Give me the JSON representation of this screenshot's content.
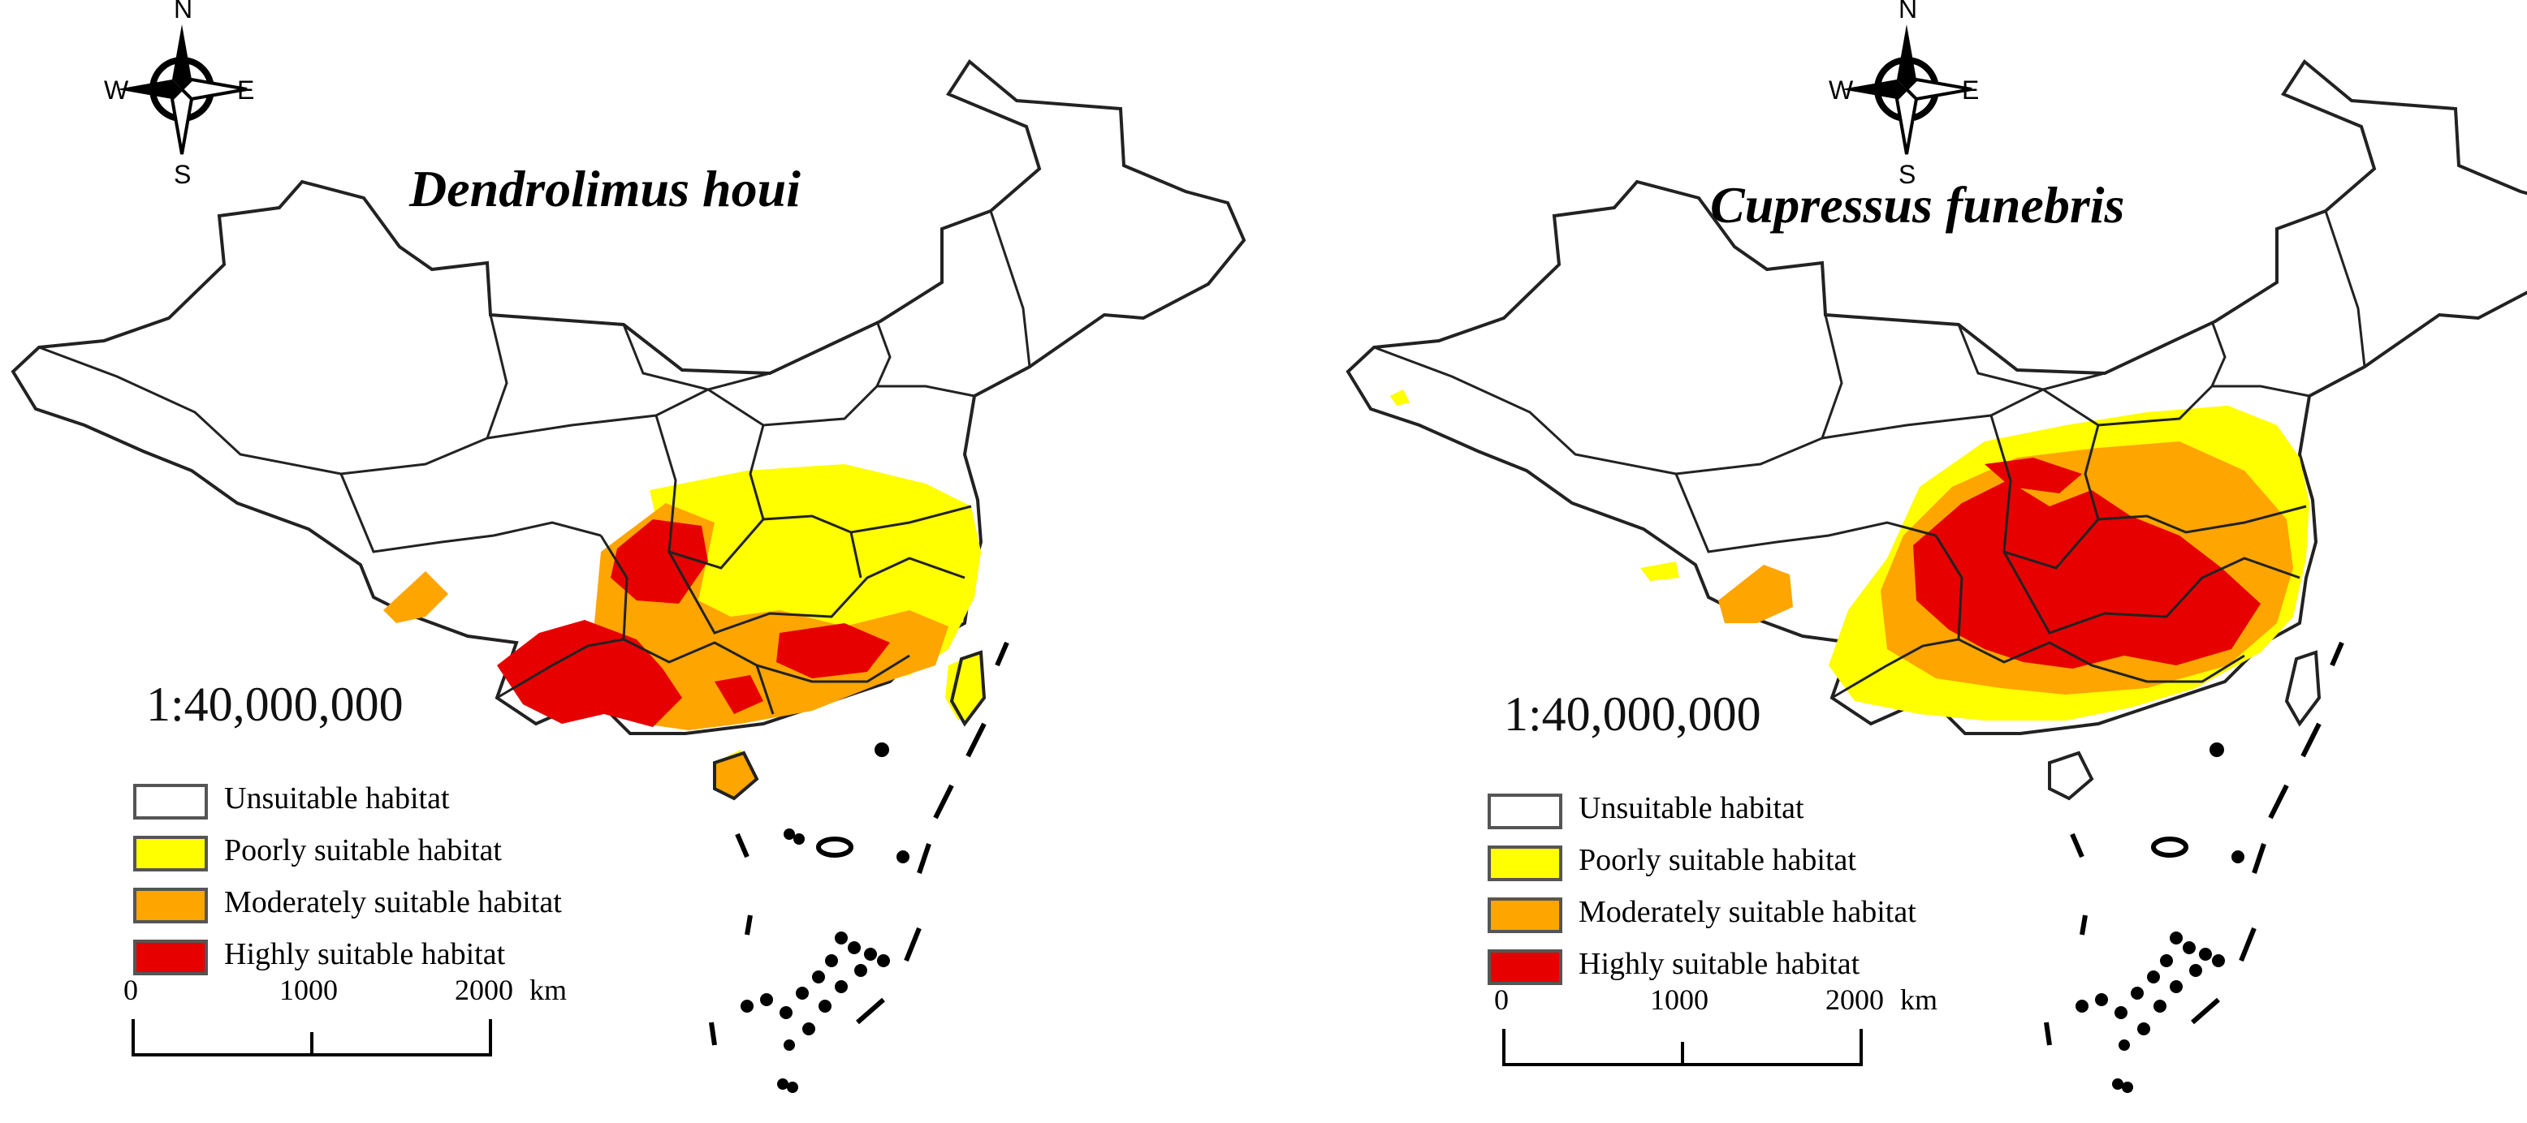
{
  "maps": [
    {
      "title": "Dendrolimus houi",
      "scale": "1:40,000,000",
      "compass": [
        "N",
        "S",
        "E",
        "W"
      ],
      "scalebar": {
        "ticks": [
          "0",
          "1000",
          "2000"
        ],
        "unit": "km"
      }
    },
    {
      "title": "Cupressus funebris",
      "scale": "1:40,000,000",
      "compass": [
        "N",
        "S",
        "E",
        "W"
      ],
      "scalebar": {
        "ticks": [
          "0",
          "1000",
          "2000"
        ],
        "unit": "km"
      }
    }
  ],
  "legend": [
    {
      "label": "Unsuitable habitat",
      "color": "#ffffff"
    },
    {
      "label": "Poorly suitable habitat",
      "color": "#ffff00"
    },
    {
      "label": "Moderately suitable habitat",
      "color": "#ffa500"
    },
    {
      "label": "Highly suitable habitat",
      "color": "#e60000"
    }
  ]
}
